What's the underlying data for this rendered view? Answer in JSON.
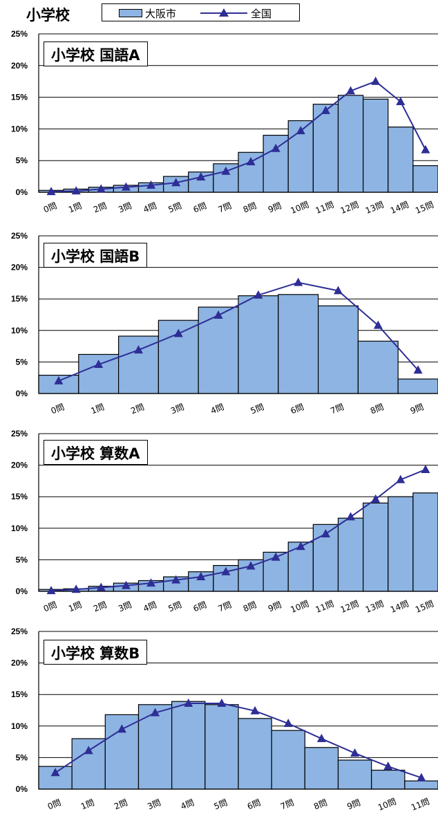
{
  "page": {
    "title": "小学校"
  },
  "legend": {
    "city": {
      "label": "大阪市",
      "color": "#8DB4E2"
    },
    "national": {
      "label": "全国",
      "color": "#2E2E96",
      "marker": "triangle"
    }
  },
  "chart_data": [
    {
      "type": "bar",
      "title": "小学校 国語A",
      "categories": [
        "0問",
        "1問",
        "2問",
        "3問",
        "4問",
        "5問",
        "6問",
        "7問",
        "8問",
        "9問",
        "10問",
        "11問",
        "12問",
        "13問",
        "14問",
        "15問"
      ],
      "ylim": [
        0,
        25
      ],
      "yticks": [
        "0%",
        "5%",
        "10%",
        "15%",
        "20%",
        "25%"
      ],
      "grid": true,
      "series": [
        {
          "name": "大阪市",
          "type": "bar",
          "values": [
            0.3,
            0.5,
            0.8,
            1.1,
            1.5,
            2.5,
            3.2,
            4.5,
            6.3,
            9.0,
            11.3,
            13.9,
            15.3,
            14.7,
            10.3,
            4.2
          ]
        },
        {
          "name": "全国",
          "type": "line",
          "values": [
            0.1,
            0.2,
            0.5,
            0.8,
            1.1,
            1.5,
            2.4,
            3.3,
            4.8,
            6.9,
            9.7,
            12.9,
            16.0,
            17.5,
            14.3,
            6.7
          ]
        }
      ]
    },
    {
      "type": "bar",
      "title": "小学校 国語B",
      "categories": [
        "0問",
        "1問",
        "2問",
        "3問",
        "4問",
        "5問",
        "6問",
        "7問",
        "8問",
        "9問"
      ],
      "ylim": [
        0,
        25
      ],
      "yticks": [
        "0%",
        "5%",
        "10%",
        "15%",
        "20%",
        "25%"
      ],
      "grid": true,
      "series": [
        {
          "name": "大阪市",
          "type": "bar",
          "values": [
            2.9,
            6.2,
            9.1,
            11.6,
            13.7,
            15.5,
            15.7,
            13.9,
            8.3,
            2.3
          ]
        },
        {
          "name": "全国",
          "type": "line",
          "values": [
            2.0,
            4.6,
            6.9,
            9.5,
            12.4,
            15.6,
            17.6,
            16.3,
            10.8,
            3.7
          ]
        }
      ]
    },
    {
      "type": "bar",
      "title": "小学校 算数A",
      "categories": [
        "0問",
        "1問",
        "2問",
        "3問",
        "4問",
        "5問",
        "6問",
        "7問",
        "8問",
        "9問",
        "10問",
        "11問",
        "12問",
        "13問",
        "14問",
        "15問"
      ],
      "ylim": [
        0,
        25
      ],
      "yticks": [
        "0%",
        "5%",
        "10%",
        "15%",
        "20%",
        "25%"
      ],
      "grid": true,
      "series": [
        {
          "name": "大阪市",
          "type": "bar",
          "values": [
            0.3,
            0.4,
            0.8,
            1.3,
            1.7,
            2.3,
            3.1,
            4.1,
            5.0,
            6.2,
            7.8,
            10.6,
            11.6,
            14.0,
            15.0,
            15.6
          ]
        },
        {
          "name": "全国",
          "type": "line",
          "values": [
            0.1,
            0.3,
            0.6,
            0.9,
            1.3,
            1.8,
            2.3,
            3.1,
            4.0,
            5.4,
            7.1,
            9.1,
            11.8,
            14.6,
            17.7,
            19.3
          ]
        }
      ]
    },
    {
      "type": "bar",
      "title": "小学校 算数B",
      "categories": [
        "0問",
        "1問",
        "2問",
        "3問",
        "4問",
        "5問",
        "6問",
        "7問",
        "8問",
        "9問",
        "10問",
        "11問"
      ],
      "ylim": [
        0,
        25
      ],
      "yticks": [
        "0%",
        "5%",
        "10%",
        "15%",
        "20%",
        "25%"
      ],
      "grid": true,
      "series": [
        {
          "name": "大阪市",
          "type": "bar",
          "values": [
            3.6,
            8.0,
            11.8,
            13.4,
            13.9,
            13.4,
            11.2,
            9.3,
            6.6,
            4.6,
            3.0,
            1.3
          ]
        },
        {
          "name": "全国",
          "type": "line",
          "values": [
            2.6,
            6.1,
            9.5,
            12.1,
            13.6,
            13.6,
            12.4,
            10.4,
            8.0,
            5.7,
            3.6,
            1.8
          ]
        }
      ]
    }
  ]
}
